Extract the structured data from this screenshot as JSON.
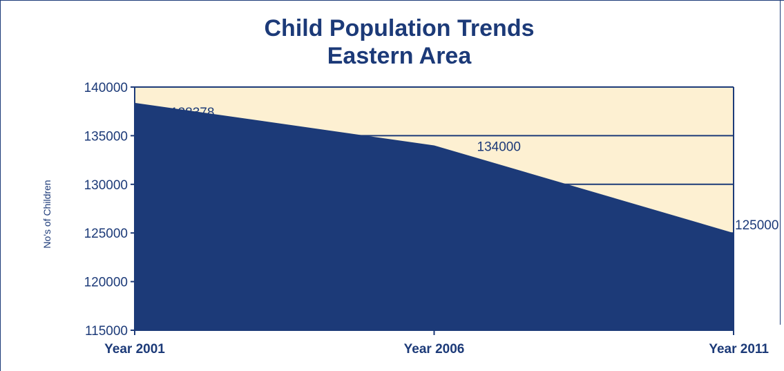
{
  "chart_data": {
    "type": "area",
    "title": "Child Population Trends",
    "subtitle": "Eastern Area",
    "xlabel": "",
    "ylabel": "No's of Children",
    "categories": [
      "Year 2001",
      "Year 2006",
      "Year 2011"
    ],
    "series": [
      {
        "values": [
          138378,
          134000,
          125000
        ]
      }
    ],
    "data_labels": [
      "138378",
      "134000",
      "125000"
    ],
    "ylim": [
      115000,
      140000
    ],
    "yticks": [
      115000,
      120000,
      125000,
      130000,
      135000,
      140000
    ],
    "ytick_labels": [
      "115000",
      "120000",
      "125000",
      "130000",
      "135000",
      "140000"
    ],
    "grid": true,
    "legend": "none",
    "colors": {
      "area_fill": "#1c3a78",
      "plot_background": "#fdf0d2",
      "axis": "#1c3a78",
      "text": "#1c3a78"
    }
  }
}
